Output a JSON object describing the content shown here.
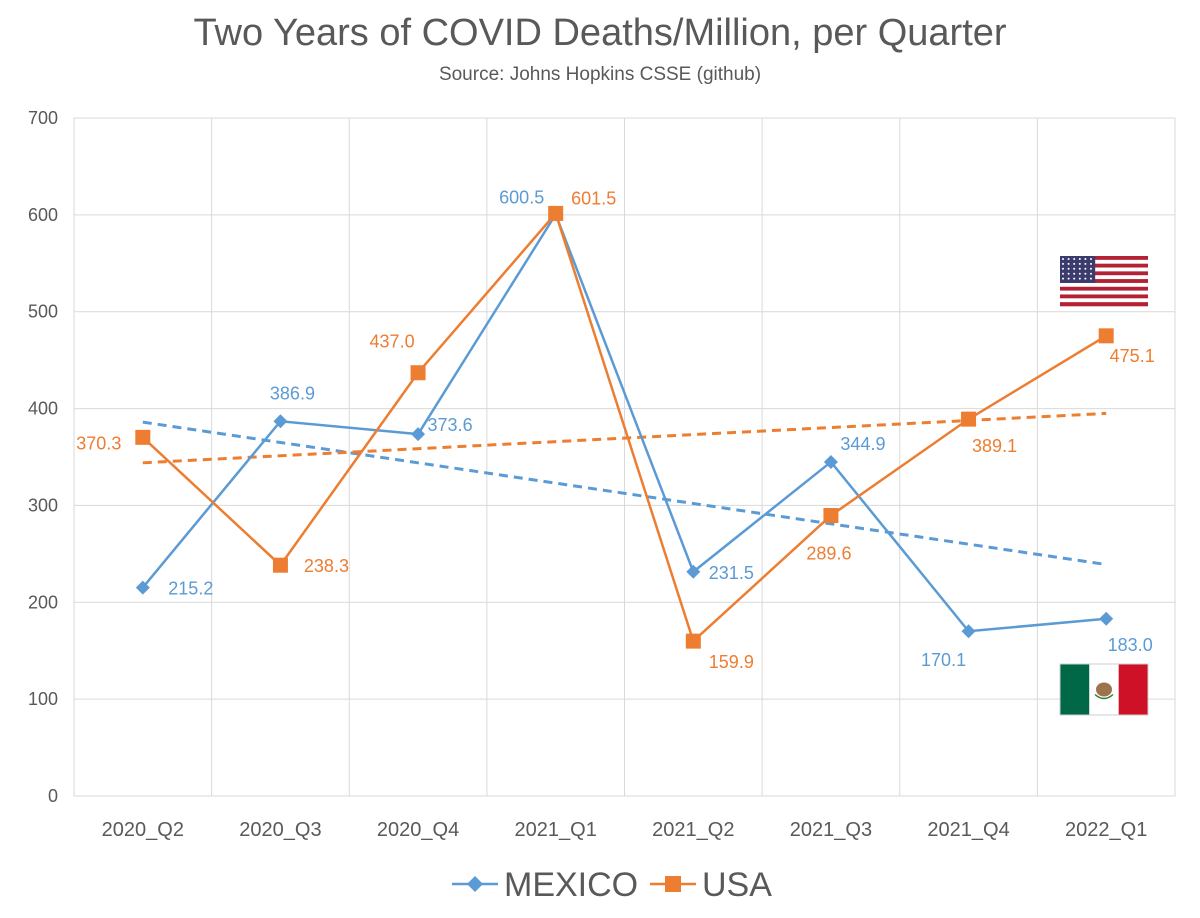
{
  "chart_data": {
    "type": "line",
    "title": "Two Years of COVID Deaths/Million, per Quarter",
    "subtitle": "Source: Johns Hopkins CSSE (github)",
    "xlabel": "",
    "ylabel": "",
    "categories": [
      "2020_Q2",
      "2020_Q3",
      "2020_Q4",
      "2021_Q1",
      "2021_Q2",
      "2021_Q3",
      "2021_Q4",
      "2022_Q1"
    ],
    "ylim": [
      0,
      700
    ],
    "yticks": [
      0,
      100,
      200,
      300,
      400,
      500,
      600,
      700
    ],
    "grid": true,
    "legend_position": "bottom",
    "series": [
      {
        "name": "MEXICO",
        "color": "#5B9BD5",
        "marker": "diamond",
        "values": [
          215.2,
          386.9,
          373.6,
          600.5,
          231.5,
          344.9,
          170.1,
          183.0
        ],
        "labels": [
          "215.2",
          "386.9",
          "373.6",
          "600.5",
          "231.5",
          "344.9",
          "170.1",
          "183.0"
        ],
        "trendline": {
          "style": "dashed",
          "start": 386,
          "end": 239
        },
        "flag": "mexico-flag"
      },
      {
        "name": "USA",
        "color": "#ED7D31",
        "marker": "square",
        "values": [
          370.3,
          238.3,
          437.0,
          601.5,
          159.9,
          289.6,
          389.1,
          475.1
        ],
        "labels": [
          "370.3",
          "238.3",
          "437.0",
          "601.5",
          "159.9",
          "289.6",
          "389.1",
          "475.1"
        ],
        "trendline": {
          "style": "dashed",
          "start": 344,
          "end": 395
        },
        "flag": "usa-flag"
      }
    ]
  }
}
